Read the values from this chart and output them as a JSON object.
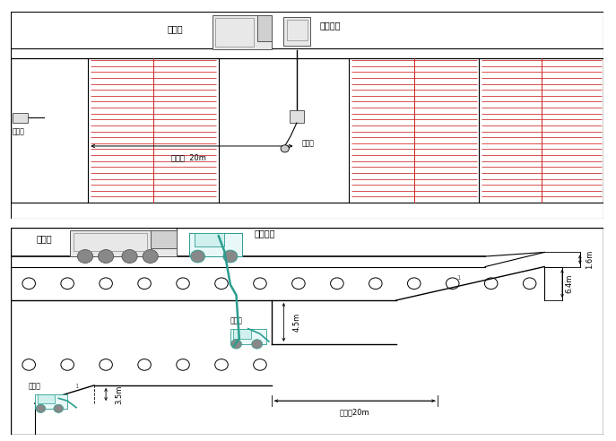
{
  "bg": "#ffffff",
  "black": "#000000",
  "red": "#cc2222",
  "teal": "#2a9d8f",
  "top": {
    "truck_label": "渣土车",
    "excavator_label": "长臂挖机",
    "small1_label": "小挖机",
    "small2_label": "小挖机",
    "dist_label": "作业距  20m"
  },
  "bot": {
    "truck_label": "渣土车",
    "excavator_label": "长臂挖机",
    "small1_label": "小挖机",
    "small2_label": "小挖机",
    "dist_label": "作业距20m",
    "h1_label": "3.5m",
    "h2_label": "4.5m",
    "h3_label": "6.4m",
    "h4_label": "1.6m"
  }
}
